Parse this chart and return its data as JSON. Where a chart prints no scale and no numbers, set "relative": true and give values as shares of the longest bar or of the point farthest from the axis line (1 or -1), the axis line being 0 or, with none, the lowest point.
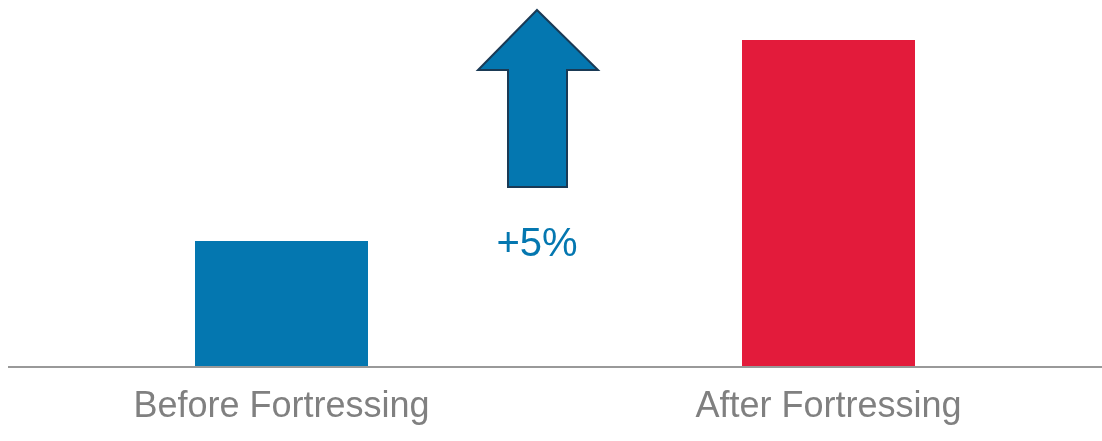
{
  "chart_data": {
    "type": "bar",
    "relative": true,
    "categories": [
      "Before Fortressing",
      "After Fortressing"
    ],
    "values": [
      0.385,
      1
    ],
    "colors": [
      "#0477b0",
      "#e31b3b"
    ],
    "annotations": [
      "+5%"
    ]
  }
}
